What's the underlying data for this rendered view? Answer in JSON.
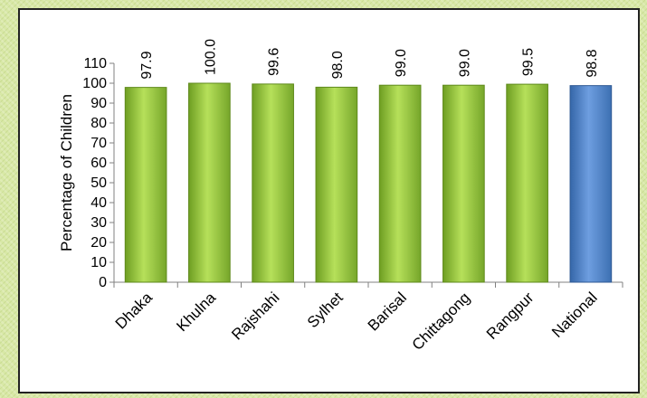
{
  "chart_data": {
    "type": "bar",
    "title": "",
    "xlabel": "",
    "ylabel": "Percentage of Children",
    "ylim": [
      0,
      110
    ],
    "yticks": [
      0,
      10,
      20,
      30,
      40,
      50,
      60,
      70,
      80,
      90,
      100,
      110
    ],
    "categories": [
      "Dhaka",
      "Khulna",
      "Rajshahi",
      "Sylhet",
      "Barisal",
      "Chittagong",
      "Rangpur",
      "National"
    ],
    "values": [
      97.9,
      100.0,
      99.6,
      98.0,
      99.0,
      99.0,
      99.5,
      98.8
    ],
    "value_labels": [
      "97.9",
      "100.0",
      "99.6",
      "98.0",
      "99.0",
      "99.0",
      "99.5",
      "98.8"
    ],
    "bar_colors": [
      "#8fc23a",
      "#8fc23a",
      "#8fc23a",
      "#8fc23a",
      "#8fc23a",
      "#8fc23a",
      "#8fc23a",
      "#4a7fc1"
    ],
    "grid": false,
    "legend": "none"
  }
}
